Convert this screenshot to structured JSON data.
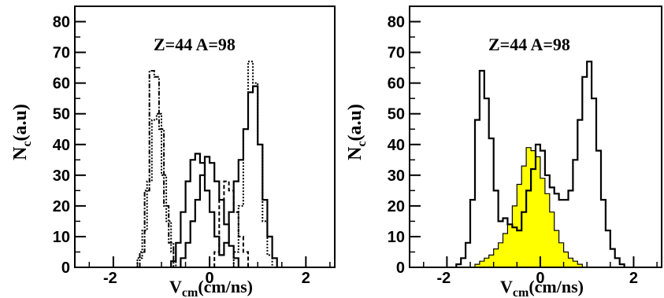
{
  "chart_data": [
    {
      "type": "histogram",
      "panel": "left",
      "annotation": "Z=44 A=98",
      "ylabel_main": "N",
      "ylabel_sub": "c",
      "ylabel_rest": "(a.u)",
      "xlabel_main": "V",
      "xlabel_sub": "cm",
      "xlabel_rest": "(cm/ns)",
      "xlim": [
        -2.8,
        2.6
      ],
      "ylim": [
        0,
        85
      ],
      "xticks": [
        -2,
        0,
        2
      ],
      "xtick_labels": [
        "-2",
        "0",
        "2"
      ],
      "yticks": [
        0,
        10,
        20,
        30,
        40,
        50,
        60,
        70,
        80
      ],
      "ytick_labels": [
        "0",
        "10",
        "20",
        "30",
        "40",
        "50",
        "60",
        "70",
        "80"
      ],
      "series": [
        {
          "style": "solid",
          "bin_width": 0.1,
          "x_start": -0.8,
          "values": [
            2,
            8,
            18,
            28,
            35,
            37,
            34,
            25,
            18,
            10,
            4,
            8,
            18,
            28,
            35,
            45,
            57,
            59,
            40,
            22,
            10,
            3
          ]
        },
        {
          "style": "solid",
          "bin_width": 0.1,
          "x_start": -0.6,
          "values": [
            3,
            8,
            15,
            22,
            30,
            36,
            34,
            28,
            22,
            14,
            7,
            3
          ]
        },
        {
          "style": "dotted",
          "bin_width": 0.1,
          "x_start": -1.5,
          "values": [
            3,
            12,
            28,
            48,
            50,
            30,
            15,
            5
          ]
        },
        {
          "style": "dashdot",
          "bin_width": 0.1,
          "x_start": -1.45,
          "values": [
            5,
            25,
            64,
            62,
            45,
            20,
            8
          ]
        },
        {
          "style": "dashed",
          "bin_width": 0.1,
          "x_start": 0.1,
          "values": [
            5,
            22,
            28,
            25,
            18,
            10,
            5
          ]
        },
        {
          "style": "dotted",
          "bin_width": 0.1,
          "x_start": 0.5,
          "values": [
            5,
            20,
            45,
            67,
            60,
            40,
            15,
            4
          ]
        }
      ]
    },
    {
      "type": "histogram",
      "panel": "right",
      "annotation": "Z=44 A=98",
      "ylabel_main": "N",
      "ylabel_sub": "c",
      "ylabel_rest": "(a.u)",
      "xlabel_main": "V",
      "xlabel_sub": "cm",
      "xlabel_rest": "(cm/ns)",
      "xlim": [
        -2.8,
        2.6
      ],
      "ylim": [
        0,
        85
      ],
      "xticks": [
        -2,
        0,
        2
      ],
      "xtick_labels": [
        "-2",
        "0",
        "2"
      ],
      "yticks": [
        0,
        10,
        20,
        30,
        40,
        50,
        60,
        70,
        80
      ],
      "ytick_labels": [
        "0",
        "10",
        "20",
        "30",
        "40",
        "50",
        "60",
        "70",
        "80"
      ],
      "fill_color": "#ffff00",
      "series": [
        {
          "style": "solid",
          "bin_width": 0.1,
          "x_start": -1.8,
          "values": [
            1,
            3,
            8,
            22,
            48,
            64,
            55,
            42,
            25,
            15,
            16,
            14,
            13,
            12,
            18,
            25,
            32,
            40,
            38,
            30,
            26,
            24,
            22,
            22,
            25,
            35,
            48,
            62,
            67,
            55,
            38,
            22,
            12,
            6,
            3,
            1
          ]
        },
        {
          "style": "filled",
          "bin_width": 0.1,
          "x_start": -1.4,
          "values": [
            1,
            2,
            3,
            4,
            6,
            8,
            11,
            14,
            20,
            27,
            33,
            39,
            38,
            36,
            29,
            24,
            18,
            12,
            8,
            5,
            3,
            2,
            1
          ]
        }
      ]
    }
  ]
}
